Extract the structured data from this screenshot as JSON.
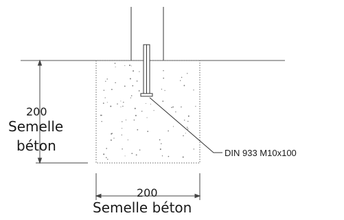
{
  "diagram": {
    "vertical_dimension": {
      "value": "200",
      "label_line1": "Semelle",
      "label_line2": "béton"
    },
    "horizontal_dimension": {
      "value": "200",
      "label": "Semelle béton"
    },
    "bolt_callout": "DIN 933 M10x100"
  }
}
